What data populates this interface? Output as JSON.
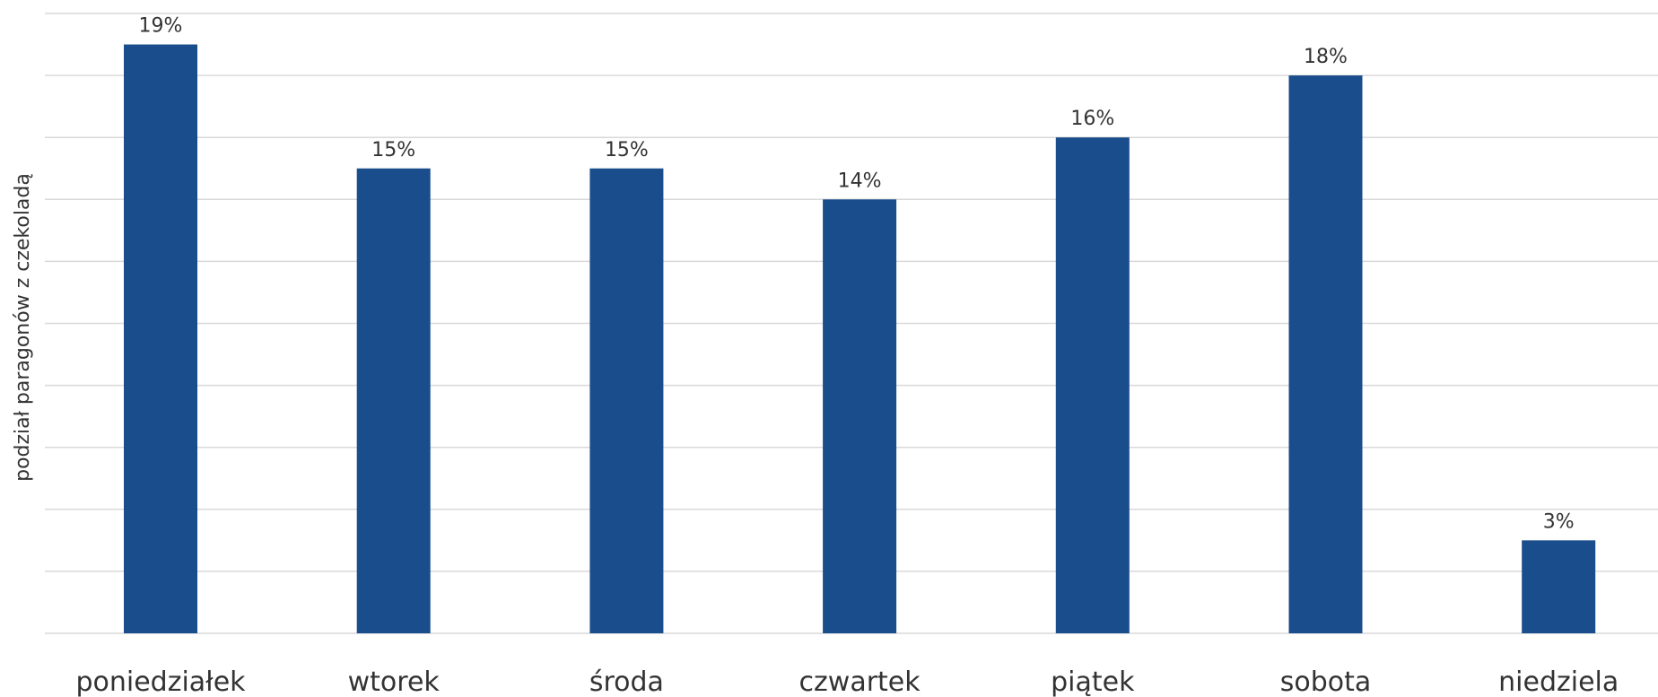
{
  "chart_data": {
    "type": "bar",
    "title": "",
    "xlabel": "",
    "ylabel": "podział paragonów z czekoladą",
    "categories": [
      "poniedziałek",
      "wtorek",
      "środa",
      "czwartek",
      "piątek",
      "sobota",
      "niedziela"
    ],
    "values": [
      19,
      15,
      15,
      14,
      16,
      18,
      3
    ],
    "data_labels": [
      "19%",
      "15%",
      "15%",
      "14%",
      "16%",
      "18%",
      "3%"
    ],
    "ylim": [
      0,
      20
    ],
    "grid": true,
    "legend": "none",
    "bar_color": "#1a4d8c"
  }
}
